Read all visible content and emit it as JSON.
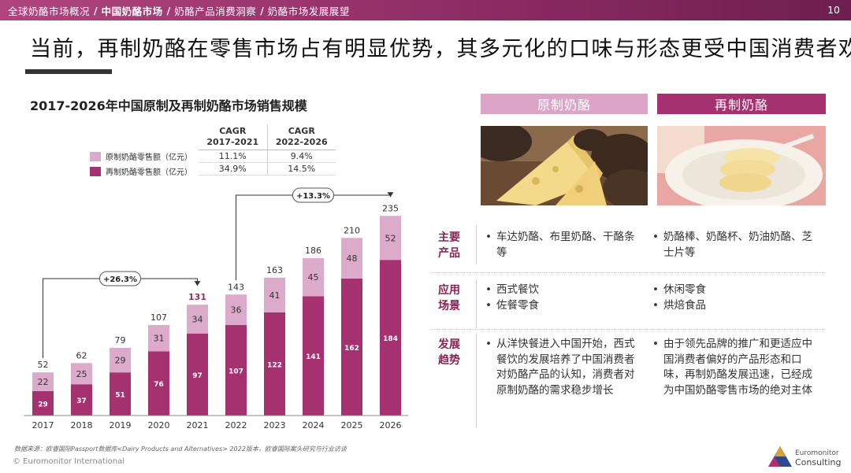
{
  "topbar": {
    "crumbs": [
      "全球奶酪市场概况",
      "中国奶酪市场",
      "奶酪产品消费洞察",
      "奶酪市场发展展望"
    ],
    "active_index": 1,
    "page_number": "10"
  },
  "headline": "当前，再制奶酪在零售市场占有明显优势，其多元化的口味与形态更受中国消费者欢迎",
  "chart": {
    "title": "2017-2026年中国原制及再制奶酪市场销售规模",
    "cagr_table": {
      "headers": [
        "CAGR\n2017-2021",
        "CAGR\n2022-2026"
      ],
      "rows": [
        [
          "11.1%",
          "9.4%"
        ],
        [
          "34.9%",
          "14.5%"
        ]
      ]
    },
    "legend": [
      "原制奶酪零售额（亿元）",
      "再制奶酪零售额（亿元）"
    ],
    "growth_callouts": [
      "+26.3%",
      "+13.3%"
    ]
  },
  "chart_data": {
    "type": "bar",
    "stacked": true,
    "title": "2017-2026年中国原制及再制奶酪市场销售规模",
    "categories": [
      "2017",
      "2018",
      "2019",
      "2020",
      "2021",
      "2022",
      "2023",
      "2024",
      "2025",
      "2026"
    ],
    "series": [
      {
        "name": "再制奶酪零售额（亿元）",
        "values": [
          29,
          37,
          51,
          76,
          97,
          107,
          122,
          141,
          162,
          184
        ],
        "color": "#a53170"
      },
      {
        "name": "原制奶酪零售额（亿元）",
        "values": [
          22,
          25,
          29,
          31,
          34,
          36,
          41,
          45,
          48,
          52
        ],
        "color": "#dcaaca"
      }
    ],
    "totals": [
      52,
      62,
      79,
      107,
      131,
      143,
      163,
      186,
      210,
      235
    ],
    "highlight_total_index": 4,
    "highlight_color": "#9b2a64",
    "annotations": [
      {
        "label": "+26.3%",
        "from": "2017",
        "to": "2021"
      },
      {
        "label": "+13.3%",
        "from": "2022",
        "to": "2026"
      }
    ],
    "ylim": [
      0,
      235
    ]
  },
  "panel": {
    "columns": [
      {
        "title": "原制奶酪",
        "color": "#dca5c8",
        "image": "cheese-wedges-photo"
      },
      {
        "title": "再制奶酪",
        "color": "#a53170",
        "image": "cheese-sticks-photo"
      }
    ],
    "rows": [
      {
        "label": "主要\n产品",
        "left": [
          "车达奶酪、布里奶酪、干酪条等"
        ],
        "right": [
          "奶酪棒、奶酪杯、奶油奶酪、芝士片等"
        ]
      },
      {
        "label": "应用\n场景",
        "left": [
          "西式餐饮",
          "佐餐零食"
        ],
        "right": [
          "休闲零食",
          "烘焙食品"
        ]
      },
      {
        "label": "发展\n趋势",
        "left": [
          "从洋快餐进入中国开始，西式餐饮的发展培养了中国消费者对奶酪产品的认知，消费者对原制奶酪的需求稳步增长"
        ],
        "right": [
          "由于领先品牌的推广和更适应中国消费者偏好的产品形态和口味，再制奶酪发展迅速，已经成为中国奶酪零售市场的绝对主体"
        ]
      }
    ]
  },
  "footer": {
    "source": "数据来源：欧睿国际Passport数据库<Dairy Products and Alternatives> 2022版本，欧睿国际案头研究与行业访谈",
    "copyright": "© Euromonitor International",
    "logo_line1": "Euromonitor",
    "logo_line2": "Consulting"
  },
  "colors": {
    "accent": "#a53170",
    "light_accent": "#dcaaca",
    "label_red": "#8b2257"
  }
}
